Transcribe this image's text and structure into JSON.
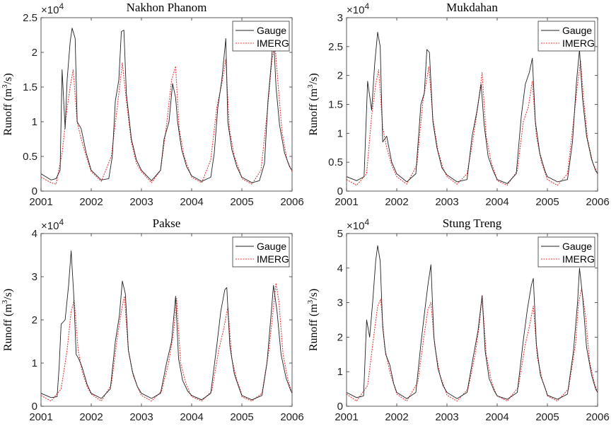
{
  "chart_data": [
    {
      "type": "line",
      "title": "Nakhon Phanom",
      "ylabel_main": "Runoff (m",
      "ylabel_sup": "3",
      "ylabel_tail": "/s)",
      "multiplier_base": "×10",
      "multiplier_exp": "4",
      "xlim": [
        2001,
        2006
      ],
      "ylim": [
        0,
        2.5
      ],
      "xticks": [
        2001,
        2002,
        2003,
        2004,
        2005,
        2006
      ],
      "xtick_labels": [
        "2001",
        "2002",
        "2003",
        "2004",
        "2005",
        "2006"
      ],
      "yticks": [
        0,
        0.5,
        1,
        1.5,
        2,
        2.5
      ],
      "ytick_labels": [
        "0",
        "0.5",
        "1",
        "1.5",
        "2",
        "2.5"
      ],
      "legend_position": "top-right",
      "series": [
        {
          "name": "Gauge",
          "color": "#222222",
          "style": "solid",
          "x": [
            2001.0,
            2001.2,
            2001.3,
            2001.38,
            2001.42,
            2001.48,
            2001.52,
            2001.58,
            2001.62,
            2001.68,
            2001.72,
            2001.8,
            2001.9,
            2002.0,
            2002.2,
            2002.35,
            2002.42,
            2002.48,
            2002.55,
            2002.6,
            2002.65,
            2002.7,
            2002.8,
            2002.9,
            2003.0,
            2003.2,
            2003.38,
            2003.45,
            2003.55,
            2003.62,
            2003.68,
            2003.72,
            2003.8,
            2003.9,
            2004.0,
            2004.2,
            2004.38,
            2004.45,
            2004.52,
            2004.6,
            2004.68,
            2004.72,
            2004.8,
            2004.9,
            2005.0,
            2005.2,
            2005.35,
            2005.45,
            2005.52,
            2005.58,
            2005.63,
            2005.68,
            2005.75,
            2005.85,
            2005.95,
            2006.0
          ],
          "y": [
            0.25,
            0.16,
            0.18,
            0.3,
            1.75,
            0.9,
            1.6,
            2.15,
            2.35,
            2.2,
            1.0,
            0.9,
            0.55,
            0.3,
            0.16,
            0.18,
            0.5,
            1.3,
            1.6,
            2.3,
            2.32,
            1.4,
            0.75,
            0.45,
            0.3,
            0.15,
            0.3,
            0.75,
            1.0,
            1.55,
            1.35,
            1.0,
            0.6,
            0.35,
            0.22,
            0.14,
            0.2,
            0.55,
            1.2,
            1.6,
            2.2,
            1.0,
            0.6,
            0.35,
            0.2,
            0.12,
            0.15,
            0.4,
            1.3,
            1.8,
            2.25,
            1.5,
            0.95,
            0.55,
            0.35,
            0.3
          ]
        },
        {
          "name": "IMERG",
          "color": "#e8383a",
          "style": "dotted",
          "x": [
            2001.0,
            2001.2,
            2001.3,
            2001.42,
            2001.52,
            2001.58,
            2001.64,
            2001.72,
            2001.8,
            2001.9,
            2002.0,
            2002.2,
            2002.4,
            2002.5,
            2002.58,
            2002.62,
            2002.7,
            2002.8,
            2002.9,
            2003.0,
            2003.2,
            2003.38,
            2003.5,
            2003.6,
            2003.68,
            2003.75,
            2003.85,
            2003.95,
            2004.0,
            2004.2,
            2004.38,
            2004.5,
            2004.6,
            2004.68,
            2004.75,
            2004.85,
            2004.95,
            2005.0,
            2005.2,
            2005.38,
            2005.5,
            2005.6,
            2005.66,
            2005.72,
            2005.8,
            2005.9,
            2006.0
          ],
          "y": [
            0.2,
            0.12,
            0.1,
            0.55,
            1.2,
            1.5,
            1.75,
            1.0,
            0.75,
            0.5,
            0.28,
            0.14,
            0.5,
            1.1,
            1.6,
            1.85,
            1.3,
            0.7,
            0.4,
            0.28,
            0.12,
            0.3,
            0.95,
            1.6,
            1.8,
            0.9,
            0.5,
            0.3,
            0.2,
            0.12,
            0.45,
            1.2,
            1.55,
            1.9,
            0.9,
            0.5,
            0.3,
            0.18,
            0.1,
            0.3,
            1.1,
            1.9,
            2.1,
            1.55,
            0.85,
            0.45,
            0.28
          ]
        }
      ]
    },
    {
      "type": "line",
      "title": "Mukdahan",
      "ylabel_main": "Runoff (m",
      "ylabel_sup": "3",
      "ylabel_tail": "/s)",
      "multiplier_base": "×10",
      "multiplier_exp": "4",
      "xlim": [
        2001,
        2006
      ],
      "ylim": [
        0,
        3
      ],
      "xticks": [
        2001,
        2002,
        2003,
        2004,
        2005,
        2006
      ],
      "xtick_labels": [
        "2001",
        "2002",
        "2003",
        "2004",
        "2005",
        "2006"
      ],
      "yticks": [
        0,
        0.5,
        1,
        1.5,
        2,
        2.5,
        3
      ],
      "ytick_labels": [
        "0",
        "0.5",
        "1",
        "1.5",
        "2",
        "2.5",
        "3"
      ],
      "legend_position": "top-right",
      "series": [
        {
          "name": "Gauge",
          "color": "#222222",
          "style": "solid",
          "x": [
            2001.0,
            2001.2,
            2001.35,
            2001.42,
            2001.5,
            2001.56,
            2001.62,
            2001.67,
            2001.72,
            2001.8,
            2001.9,
            2002.0,
            2002.2,
            2002.38,
            2002.48,
            2002.55,
            2002.6,
            2002.65,
            2002.72,
            2002.8,
            2002.9,
            2003.0,
            2003.2,
            2003.4,
            2003.5,
            2003.6,
            2003.68,
            2003.74,
            2003.82,
            2003.92,
            2004.0,
            2004.2,
            2004.38,
            2004.48,
            2004.56,
            2004.64,
            2004.7,
            2004.76,
            2004.85,
            2004.95,
            2005.0,
            2005.2,
            2005.4,
            2005.5,
            2005.58,
            2005.64,
            2005.7,
            2005.78,
            2005.88,
            2005.96,
            2006.0
          ],
          "y": [
            0.25,
            0.18,
            0.25,
            1.9,
            1.4,
            2.2,
            2.75,
            2.5,
            0.85,
            0.95,
            0.5,
            0.3,
            0.16,
            0.3,
            1.5,
            1.7,
            2.45,
            2.4,
            1.2,
            0.75,
            0.4,
            0.28,
            0.16,
            0.2,
            0.95,
            1.4,
            1.85,
            1.15,
            0.6,
            0.35,
            0.2,
            0.13,
            0.3,
            1.3,
            1.85,
            2.05,
            2.3,
            1.2,
            0.65,
            0.35,
            0.25,
            0.16,
            0.2,
            0.85,
            1.9,
            2.45,
            1.6,
            0.95,
            0.55,
            0.35,
            0.3
          ]
        },
        {
          "name": "IMERG",
          "color": "#e8383a",
          "style": "dotted",
          "x": [
            2001.0,
            2001.2,
            2001.4,
            2001.5,
            2001.58,
            2001.64,
            2001.72,
            2001.8,
            2001.9,
            2002.0,
            2002.2,
            2002.4,
            2002.52,
            2002.6,
            2002.64,
            2002.72,
            2002.82,
            2002.92,
            2003.0,
            2003.2,
            2003.4,
            2003.52,
            2003.62,
            2003.7,
            2003.78,
            2003.88,
            2003.96,
            2004.0,
            2004.2,
            2004.4,
            2004.52,
            2004.62,
            2004.7,
            2004.78,
            2004.88,
            2004.96,
            2005.0,
            2005.2,
            2005.4,
            2005.52,
            2005.6,
            2005.66,
            2005.72,
            2005.8,
            2005.9,
            2006.0
          ],
          "y": [
            0.2,
            0.1,
            0.3,
            1.3,
            1.85,
            2.1,
            1.1,
            0.75,
            0.45,
            0.25,
            0.12,
            0.45,
            1.55,
            1.95,
            2.15,
            1.25,
            0.7,
            0.4,
            0.25,
            0.12,
            0.3,
            0.9,
            1.5,
            2.05,
            0.95,
            0.5,
            0.3,
            0.18,
            0.1,
            0.35,
            1.2,
            1.45,
            1.9,
            0.95,
            0.5,
            0.3,
            0.2,
            0.1,
            0.3,
            1.2,
            1.85,
            2.25,
            1.6,
            0.9,
            0.5,
            0.3
          ]
        }
      ]
    },
    {
      "type": "line",
      "title": "Pakse",
      "ylabel_main": "Runoff (m",
      "ylabel_sup": "3",
      "ylabel_tail": "/s)",
      "multiplier_base": "×10",
      "multiplier_exp": "4",
      "xlim": [
        2001,
        2006
      ],
      "ylim": [
        0,
        4
      ],
      "xticks": [
        2001,
        2002,
        2003,
        2004,
        2005,
        2006
      ],
      "xtick_labels": [
        "2001",
        "2002",
        "2003",
        "2004",
        "2005",
        "2006"
      ],
      "yticks": [
        0,
        1,
        2,
        3,
        4
      ],
      "ytick_labels": [
        "0",
        "1",
        "2",
        "3",
        "4"
      ],
      "legend_position": "top-right",
      "series": [
        {
          "name": "Gauge",
          "color": "#222222",
          "style": "solid",
          "x": [
            2001.0,
            2001.2,
            2001.32,
            2001.36,
            2001.4,
            2001.48,
            2001.55,
            2001.6,
            2001.65,
            2001.7,
            2001.75,
            2001.82,
            2001.92,
            2002.0,
            2002.2,
            2002.38,
            2002.48,
            2002.56,
            2002.62,
            2002.68,
            2002.74,
            2002.82,
            2002.92,
            2003.0,
            2003.2,
            2003.38,
            2003.5,
            2003.6,
            2003.68,
            2003.74,
            2003.82,
            2003.92,
            2004.0,
            2004.2,
            2004.38,
            2004.5,
            2004.58,
            2004.66,
            2004.7,
            2004.76,
            2004.85,
            2004.95,
            2005.0,
            2005.2,
            2005.4,
            2005.5,
            2005.58,
            2005.63,
            2005.7,
            2005.78,
            2005.88,
            2005.96,
            2006.0
          ],
          "y": [
            0.3,
            0.2,
            0.22,
            0.9,
            1.9,
            2.0,
            2.8,
            3.6,
            2.6,
            1.2,
            1.1,
            0.9,
            0.5,
            0.3,
            0.18,
            0.4,
            1.5,
            2.1,
            2.9,
            2.6,
            1.3,
            0.8,
            0.45,
            0.3,
            0.18,
            0.3,
            1.0,
            1.5,
            2.55,
            1.1,
            0.6,
            0.35,
            0.25,
            0.15,
            0.3,
            1.4,
            2.2,
            2.7,
            2.75,
            1.4,
            0.75,
            0.4,
            0.25,
            0.15,
            0.25,
            1.0,
            2.1,
            2.8,
            2.2,
            1.2,
            0.65,
            0.4,
            0.3
          ]
        },
        {
          "name": "IMERG",
          "color": "#e8383a",
          "style": "dotted",
          "x": [
            2001.0,
            2001.2,
            2001.4,
            2001.52,
            2001.6,
            2001.66,
            2001.74,
            2001.82,
            2001.92,
            2002.0,
            2002.2,
            2002.4,
            2002.52,
            2002.6,
            2002.66,
            2002.74,
            2002.84,
            2002.94,
            2003.0,
            2003.2,
            2003.4,
            2003.54,
            2003.64,
            2003.7,
            2003.78,
            2003.88,
            2003.96,
            2004.0,
            2004.2,
            2004.4,
            2004.54,
            2004.64,
            2004.72,
            2004.8,
            2004.9,
            2004.98,
            2005.0,
            2005.2,
            2005.4,
            2005.54,
            2005.62,
            2005.68,
            2005.74,
            2005.82,
            2005.92,
            2006.0
          ],
          "y": [
            0.25,
            0.12,
            0.4,
            1.3,
            2.2,
            2.45,
            1.3,
            0.8,
            0.45,
            0.28,
            0.12,
            0.5,
            1.6,
            2.2,
            2.55,
            1.3,
            0.7,
            0.4,
            0.25,
            0.12,
            0.35,
            1.0,
            1.7,
            2.5,
            1.0,
            0.55,
            0.32,
            0.22,
            0.12,
            0.35,
            1.3,
            1.8,
            2.3,
            1.1,
            0.6,
            0.35,
            0.22,
            0.12,
            0.3,
            1.3,
            2.2,
            2.85,
            2.4,
            1.2,
            0.6,
            0.3
          ]
        }
      ]
    },
    {
      "type": "line",
      "title": "Stung Treng",
      "ylabel_main": "Runoff (m",
      "ylabel_sup": "3",
      "ylabel_tail": "/s)",
      "multiplier_base": "×10",
      "multiplier_exp": "4",
      "xlim": [
        2001,
        2006
      ],
      "ylim": [
        0,
        5
      ],
      "xticks": [
        2001,
        2002,
        2003,
        2004,
        2005,
        2006
      ],
      "xtick_labels": [
        "2001",
        "2002",
        "2003",
        "2004",
        "2005",
        "2006"
      ],
      "yticks": [
        0,
        1,
        2,
        3,
        4,
        5
      ],
      "ytick_labels": [
        "0",
        "1",
        "2",
        "3",
        "4",
        "5"
      ],
      "legend_position": "top-right",
      "series": [
        {
          "name": "Gauge",
          "color": "#222222",
          "style": "solid",
          "x": [
            2001.0,
            2001.2,
            2001.34,
            2001.4,
            2001.46,
            2001.52,
            2001.58,
            2001.62,
            2001.67,
            2001.72,
            2001.78,
            2001.86,
            2001.94,
            2002.0,
            2002.2,
            2002.38,
            2002.48,
            2002.56,
            2002.62,
            2002.68,
            2002.74,
            2002.82,
            2002.92,
            2003.0,
            2003.2,
            2003.4,
            2003.52,
            2003.62,
            2003.7,
            2003.76,
            2003.84,
            2003.94,
            2004.0,
            2004.2,
            2004.4,
            2004.52,
            2004.6,
            2004.68,
            2004.72,
            2004.78,
            2004.86,
            2004.96,
            2005.0,
            2005.2,
            2005.4,
            2005.52,
            2005.6,
            2005.64,
            2005.7,
            2005.78,
            2005.88,
            2005.96,
            2006.0
          ],
          "y": [
            0.4,
            0.25,
            0.3,
            2.5,
            2.0,
            3.0,
            4.2,
            4.65,
            4.2,
            2.3,
            1.5,
            1.2,
            0.65,
            0.4,
            0.22,
            0.4,
            1.8,
            2.8,
            3.5,
            4.1,
            2.0,
            1.1,
            0.6,
            0.4,
            0.22,
            0.4,
            1.4,
            2.2,
            3.2,
            1.6,
            0.8,
            0.45,
            0.3,
            0.2,
            0.4,
            1.9,
            2.8,
            3.5,
            3.7,
            1.8,
            0.9,
            0.5,
            0.32,
            0.2,
            0.35,
            1.6,
            3.0,
            4.0,
            3.2,
            1.7,
            0.9,
            0.5,
            0.4
          ]
        },
        {
          "name": "IMERG",
          "color": "#e8383a",
          "style": "dotted",
          "x": [
            2001.0,
            2001.2,
            2001.42,
            2001.54,
            2001.62,
            2001.68,
            2001.76,
            2001.86,
            2001.96,
            2002.0,
            2002.2,
            2002.42,
            2002.54,
            2002.62,
            2002.68,
            2002.76,
            2002.86,
            2002.96,
            2003.0,
            2003.2,
            2003.42,
            2003.56,
            2003.64,
            2003.7,
            2003.78,
            2003.88,
            2003.96,
            2004.0,
            2004.2,
            2004.42,
            2004.56,
            2004.64,
            2004.72,
            2004.8,
            2004.9,
            2004.98,
            2005.0,
            2005.2,
            2005.42,
            2005.56,
            2005.62,
            2005.68,
            2005.76,
            2005.84,
            2005.94,
            2006.0
          ],
          "y": [
            0.35,
            0.15,
            0.6,
            2.0,
            2.9,
            3.1,
            1.7,
            1.0,
            0.55,
            0.35,
            0.15,
            0.7,
            2.0,
            2.8,
            3.0,
            1.7,
            0.9,
            0.5,
            0.32,
            0.15,
            0.5,
            1.5,
            2.3,
            3.2,
            1.5,
            0.75,
            0.42,
            0.3,
            0.15,
            0.55,
            1.8,
            2.3,
            2.9,
            1.4,
            0.75,
            0.42,
            0.3,
            0.15,
            0.5,
            1.8,
            3.0,
            3.4,
            2.6,
            1.3,
            0.65,
            0.4
          ]
        }
      ]
    }
  ]
}
